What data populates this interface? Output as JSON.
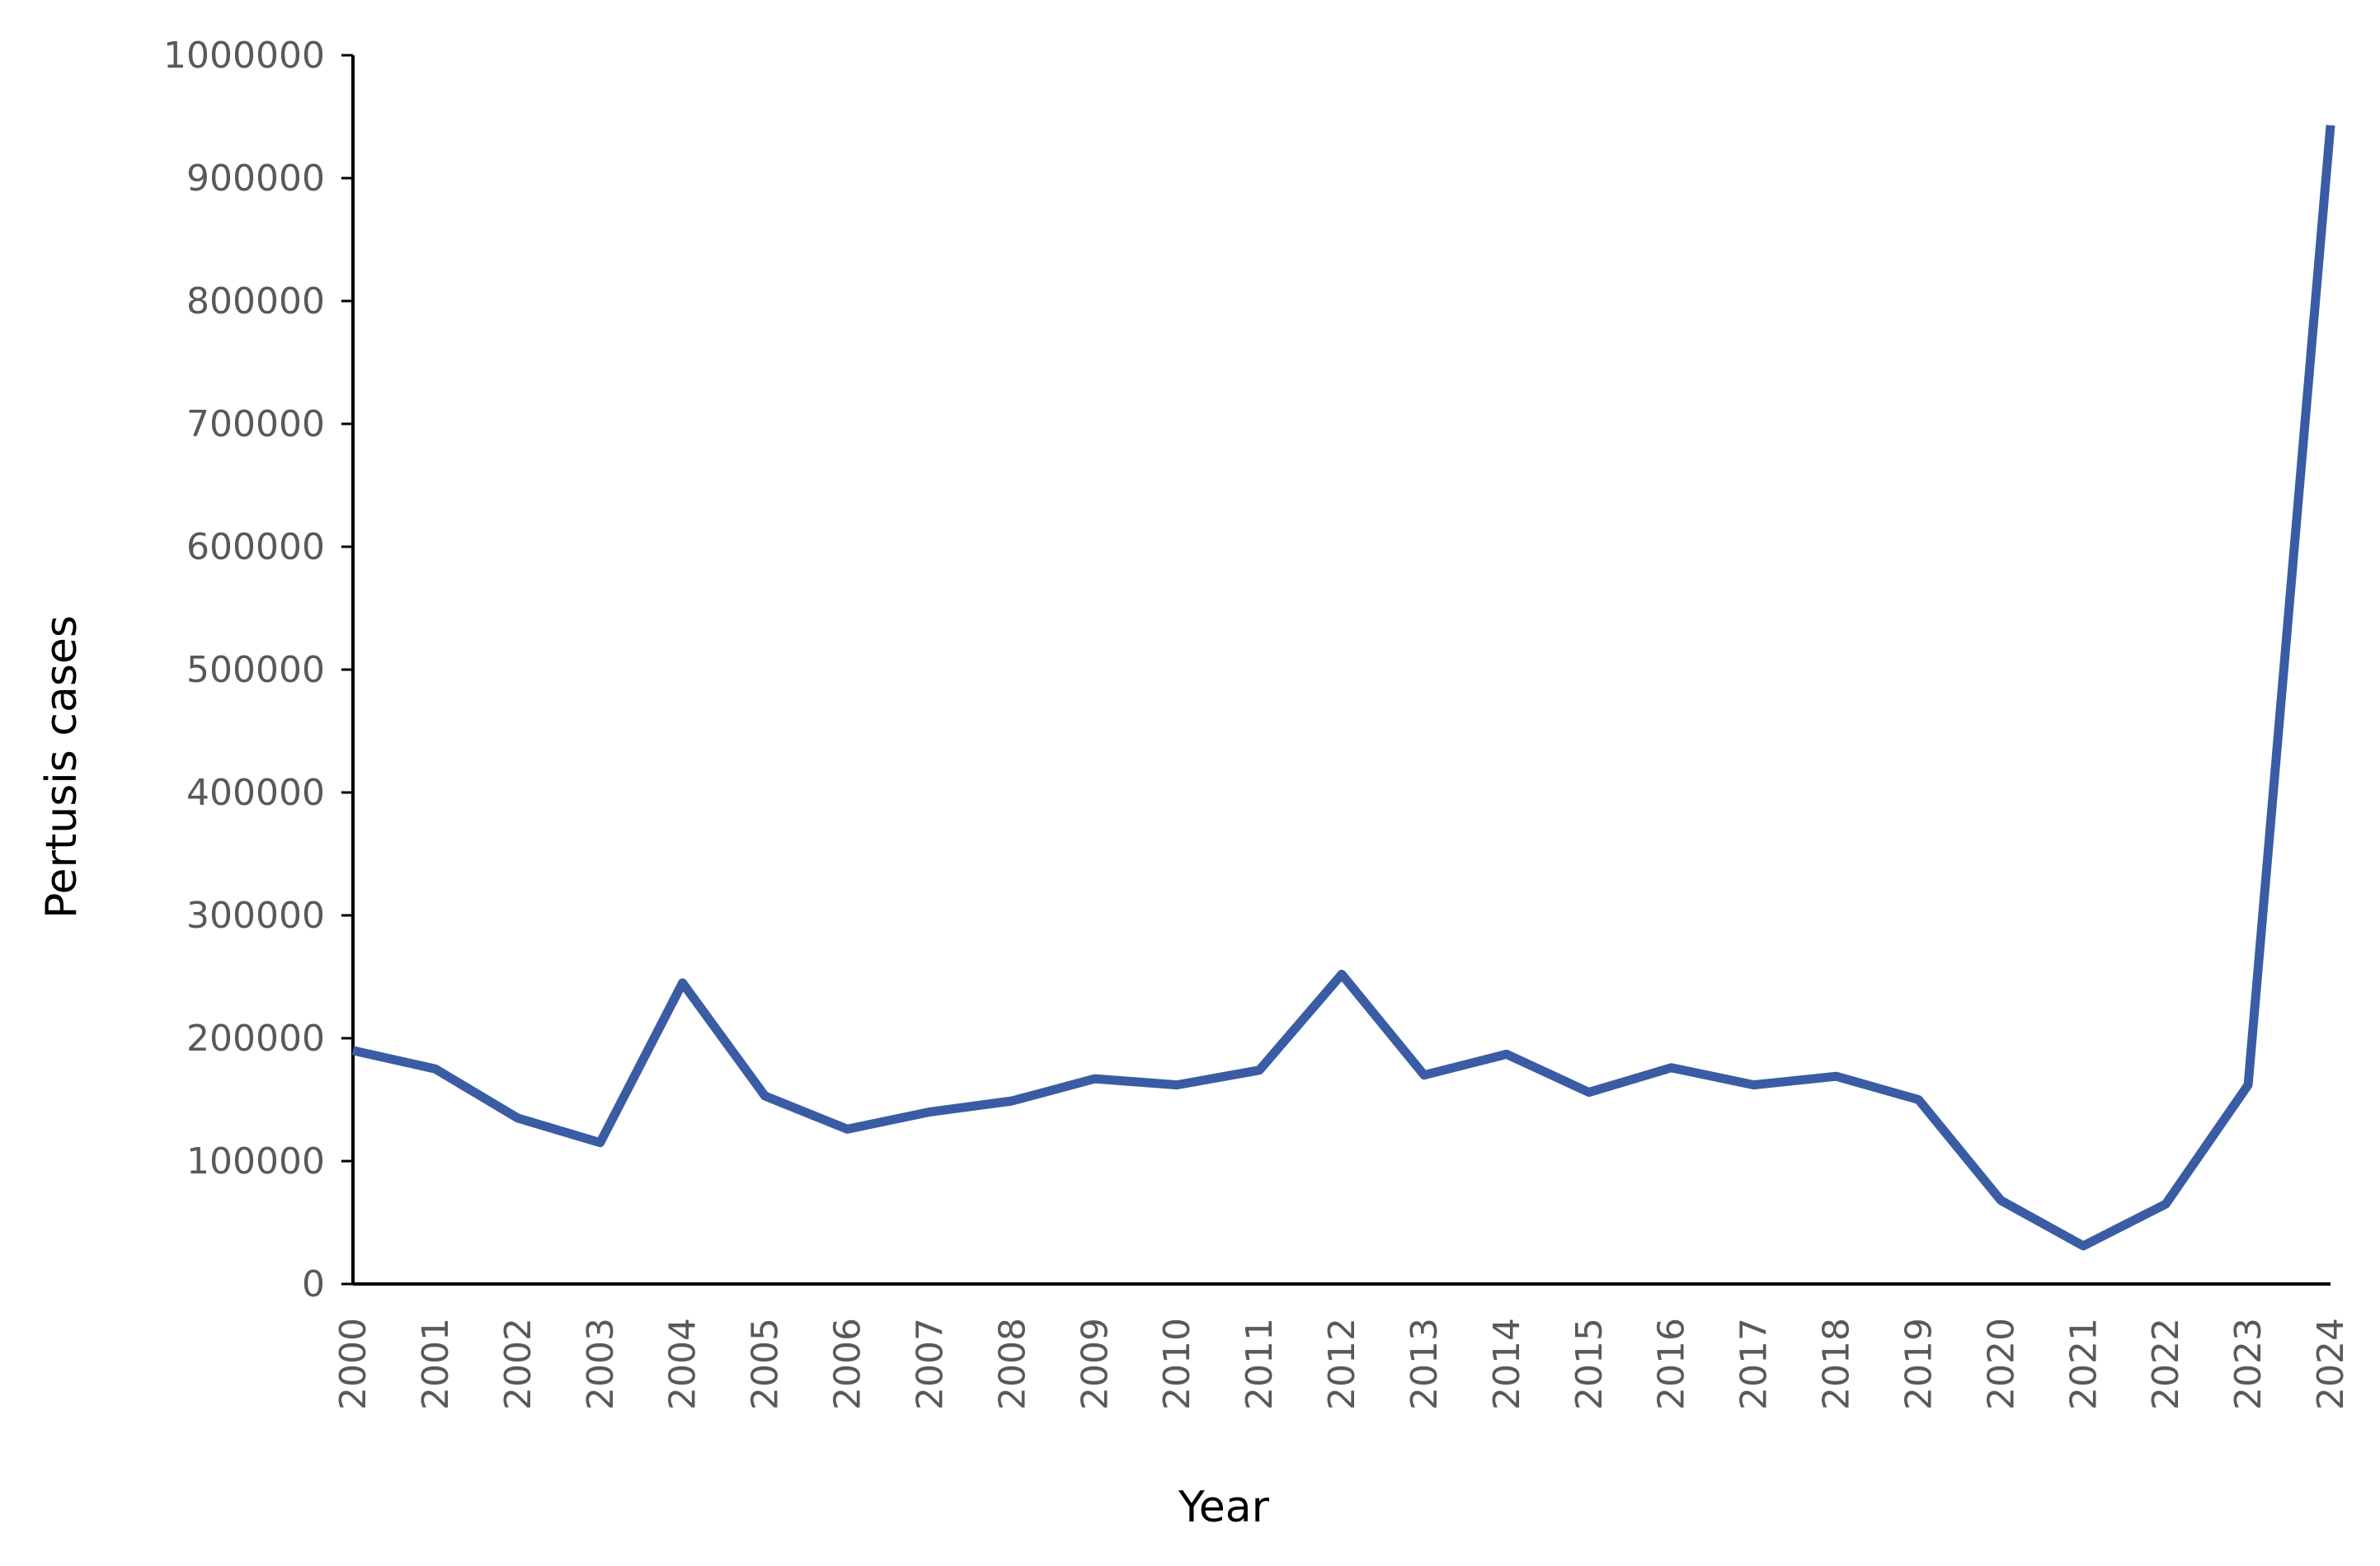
{
  "chart_data": {
    "type": "line",
    "x_label": "Year",
    "y_label": "Pertusis cases",
    "categories": [
      "2000",
      "2001",
      "2002",
      "2003",
      "2004",
      "2005",
      "2006",
      "2007",
      "2008",
      "2009",
      "2010",
      "2011",
      "2012",
      "2013",
      "2014",
      "2015",
      "2016",
      "2017",
      "2018",
      "2019",
      "2020",
      "2021",
      "2022",
      "2023",
      "2024"
    ],
    "series": [
      {
        "color": "#3a5ca5",
        "values": [
          190000,
          175000,
          135000,
          115000,
          245000,
          153000,
          126000,
          140000,
          149000,
          167000,
          162000,
          174000,
          252000,
          170000,
          187000,
          156000,
          176000,
          162000,
          169000,
          150000,
          68000,
          31000,
          65000,
          162000,
          943000
        ]
      }
    ],
    "ylim": [
      0,
      1000000
    ],
    "yticks": [
      0,
      100000,
      200000,
      300000,
      400000,
      500000,
      600000,
      700000,
      800000,
      900000,
      1000000
    ],
    "grid": false
  }
}
